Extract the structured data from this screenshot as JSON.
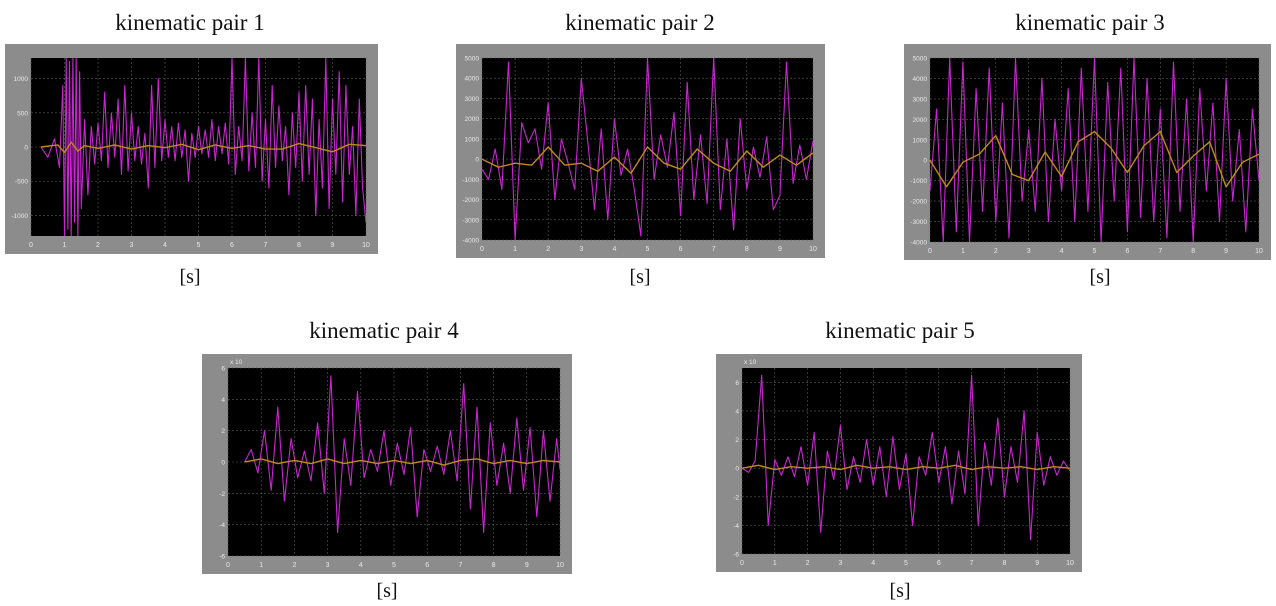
{
  "colors": {
    "frame": "#8c8c8c",
    "plot_bg": "#000000",
    "grid": "#5a5a5a",
    "tick_text": "#e8e8e8",
    "series_magenta": "#c826d0",
    "series_orange": "#c08a18"
  },
  "chart_data": [
    {
      "type": "line",
      "title": "kinematic pair 1",
      "xlabel": "[s]",
      "x_ticks": [
        "0",
        "1",
        "2",
        "3",
        "4",
        "5",
        "6",
        "7",
        "8",
        "9",
        "10"
      ],
      "y_ticks": [
        "-1000",
        "-500",
        "0",
        "500",
        "1000"
      ],
      "y_exponent": "",
      "xlim": [
        0,
        10
      ],
      "ylim": [
        -1300,
        1300
      ],
      "grid": true,
      "series": [
        {
          "color": "#c826d0",
          "x": [
            0.3,
            0.5,
            0.7,
            0.85,
            0.95,
            1.0,
            1.05,
            1.1,
            1.15,
            1.2,
            1.25,
            1.3,
            1.35,
            1.4,
            1.45,
            1.5,
            1.6,
            1.7,
            1.8,
            1.9,
            2.0,
            2.1,
            2.2,
            2.3,
            2.4,
            2.5,
            2.6,
            2.7,
            2.8,
            2.9,
            3.0,
            3.1,
            3.2,
            3.3,
            3.4,
            3.5,
            3.6,
            3.7,
            3.8,
            3.9,
            4.0,
            4.1,
            4.2,
            4.3,
            4.4,
            4.5,
            4.6,
            4.7,
            4.8,
            4.9,
            5.0,
            5.1,
            5.2,
            5.3,
            5.4,
            5.5,
            5.6,
            5.7,
            5.8,
            5.9,
            6.0,
            6.1,
            6.2,
            6.3,
            6.4,
            6.5,
            6.6,
            6.7,
            6.8,
            6.9,
            7.0,
            7.1,
            7.2,
            7.3,
            7.4,
            7.5,
            7.6,
            7.7,
            7.8,
            7.9,
            8.0,
            8.1,
            8.2,
            8.3,
            8.4,
            8.5,
            8.6,
            8.7,
            8.8,
            8.9,
            9.0,
            9.1,
            9.2,
            9.3,
            9.4,
            9.5,
            9.6,
            9.7,
            9.8,
            9.9,
            10.0
          ],
          "y": [
            0,
            -150,
            120,
            -300,
            900,
            -1300,
            1300,
            -1200,
            1250,
            -1300,
            1300,
            -1100,
            1300,
            -1300,
            1100,
            -900,
            400,
            -700,
            300,
            -250,
            350,
            -200,
            800,
            -300,
            500,
            -150,
            700,
            -400,
            900,
            -350,
            500,
            -200,
            300,
            -250,
            200,
            -600,
            900,
            -300,
            1000,
            -200,
            400,
            -150,
            300,
            -200,
            350,
            -150,
            250,
            -500,
            200,
            -150,
            300,
            -100,
            250,
            -150,
            400,
            -200,
            300,
            -100,
            350,
            -250,
            1300,
            -400,
            300,
            -200,
            1300,
            -350,
            500,
            -300,
            1300,
            -500,
            400,
            -600,
            900,
            -300,
            600,
            -200,
            300,
            -700,
            500,
            -300,
            800,
            -500,
            900,
            -400,
            700,
            -1000,
            400,
            -600,
            1300,
            -900,
            700,
            -400,
            1100,
            -800,
            900,
            -400,
            300,
            -1000,
            700,
            -600,
            -1100
          ]
        },
        {
          "color": "#c08a18",
          "x": [
            0.3,
            0.8,
            1.0,
            1.2,
            1.4,
            1.6,
            2.0,
            2.5,
            3.0,
            3.5,
            4.0,
            4.5,
            5.0,
            5.5,
            6.0,
            6.5,
            7.0,
            7.5,
            8.0,
            8.5,
            9.0,
            9.5,
            10.0
          ],
          "y": [
            0,
            30,
            -80,
            70,
            -60,
            20,
            -20,
            30,
            -30,
            20,
            -10,
            40,
            -40,
            30,
            -20,
            20,
            -30,
            -30,
            50,
            -10,
            -70,
            40,
            20
          ]
        }
      ]
    },
    {
      "type": "line",
      "title": "kinematic pair 2",
      "xlabel": "[s]",
      "x_ticks": [
        "0",
        "1",
        "2",
        "3",
        "4",
        "5",
        "6",
        "7",
        "8",
        "9",
        "10"
      ],
      "y_ticks": [
        "-4000",
        "-3000",
        "-2000",
        "-1000",
        "0",
        "1000",
        "2000",
        "3000",
        "4000",
        "5000"
      ],
      "y_exponent": "",
      "xlim": [
        0,
        10
      ],
      "ylim": [
        -4000,
        5000
      ],
      "grid": true,
      "series": [
        {
          "color": "#c826d0",
          "x": [
            0.0,
            0.2,
            0.4,
            0.6,
            0.8,
            1.0,
            1.2,
            1.4,
            1.6,
            1.8,
            2.0,
            2.2,
            2.4,
            2.6,
            2.8,
            3.0,
            3.2,
            3.4,
            3.6,
            3.8,
            4.0,
            4.2,
            4.4,
            4.6,
            4.8,
            5.0,
            5.2,
            5.4,
            5.6,
            5.8,
            6.0,
            6.2,
            6.4,
            6.6,
            6.8,
            7.0,
            7.2,
            7.4,
            7.6,
            7.8,
            8.0,
            8.2,
            8.4,
            8.6,
            8.8,
            9.0,
            9.2,
            9.4,
            9.6,
            9.8,
            10.0
          ],
          "y": [
            -500,
            -1000,
            500,
            -1500,
            4800,
            -4000,
            1800,
            800,
            1500,
            -500,
            2800,
            -2000,
            1000,
            -200,
            -1500,
            4000,
            800,
            -2500,
            1500,
            -3000,
            2000,
            -800,
            500,
            -1500,
            -3800,
            5000,
            -1000,
            1200,
            -400,
            2300,
            -2800,
            3800,
            -2000,
            1200,
            -2200,
            5000,
            -2500,
            1000,
            -3500,
            2000,
            -1500,
            600,
            -900,
            1100,
            -2500,
            -1800,
            4800,
            -1200,
            700,
            -1000,
            900
          ]
        },
        {
          "color": "#c08a18",
          "x": [
            0.0,
            0.5,
            1.0,
            1.5,
            2.0,
            2.5,
            3.0,
            3.5,
            4.0,
            4.5,
            5.0,
            5.5,
            6.0,
            6.5,
            7.0,
            7.5,
            8.0,
            8.5,
            9.0,
            9.5,
            10.0
          ],
          "y": [
            0,
            -400,
            -200,
            -300,
            600,
            -300,
            -200,
            -600,
            100,
            -700,
            600,
            -200,
            -500,
            500,
            -200,
            -600,
            400,
            -400,
            200,
            -300,
            300
          ]
        }
      ]
    },
    {
      "type": "line",
      "title": "kinematic pair 3",
      "xlabel": "[s]",
      "x_ticks": [
        "0",
        "1",
        "2",
        "3",
        "4",
        "5",
        "6",
        "7",
        "8",
        "9",
        "10"
      ],
      "y_ticks": [
        "-4000",
        "-3000",
        "-2000",
        "-1000",
        "0",
        "1000",
        "2000",
        "3000",
        "4000",
        "5000"
      ],
      "y_exponent": "",
      "xlim": [
        0,
        10
      ],
      "ylim": [
        -4000,
        5000
      ],
      "grid": true,
      "series": [
        {
          "color": "#c826d0",
          "x": [
            0.0,
            0.2,
            0.4,
            0.6,
            0.8,
            1.0,
            1.2,
            1.4,
            1.6,
            1.8,
            2.0,
            2.2,
            2.4,
            2.6,
            2.8,
            3.0,
            3.2,
            3.4,
            3.6,
            3.8,
            4.0,
            4.2,
            4.4,
            4.6,
            4.8,
            5.0,
            5.2,
            5.4,
            5.6,
            5.8,
            6.0,
            6.2,
            6.4,
            6.6,
            6.8,
            7.0,
            7.2,
            7.4,
            7.6,
            7.8,
            8.0,
            8.2,
            8.4,
            8.6,
            8.8,
            9.0,
            9.2,
            9.4,
            9.6,
            9.8,
            10.0
          ],
          "y": [
            -1500,
            2500,
            -4000,
            5000,
            -3500,
            4800,
            -4000,
            3500,
            -2500,
            4500,
            -3000,
            2800,
            -3800,
            5000,
            -2000,
            1500,
            -2500,
            4000,
            -3000,
            2000,
            -1500,
            3500,
            -3000,
            4500,
            -2500,
            5000,
            -4000,
            3800,
            -2000,
            4500,
            -3500,
            5000,
            -2800,
            4000,
            -3000,
            2500,
            -3800,
            4800,
            -2500,
            3000,
            -4000,
            3500,
            -1500,
            2800,
            -3000,
            4000,
            -2000,
            1500,
            -3500,
            2500,
            -1000
          ]
        },
        {
          "color": "#c08a18",
          "x": [
            0.0,
            0.5,
            1.0,
            1.5,
            2.0,
            2.5,
            3.0,
            3.5,
            4.0,
            4.5,
            5.0,
            5.5,
            6.0,
            6.5,
            7.0,
            7.5,
            8.0,
            8.5,
            9.0,
            9.5,
            10.0
          ],
          "y": [
            0,
            -1300,
            -100,
            300,
            1200,
            -700,
            -1000,
            400,
            -800,
            900,
            1400,
            600,
            -600,
            700,
            1400,
            -600,
            200,
            900,
            -1300,
            -100,
            300
          ]
        }
      ]
    },
    {
      "type": "line",
      "title": "kinematic pair 4",
      "xlabel": "[s]",
      "x_ticks": [
        "0",
        "1",
        "2",
        "3",
        "4",
        "5",
        "6",
        "7",
        "8",
        "9",
        "10"
      ],
      "y_ticks": [
        "-6",
        "-4",
        "-2",
        "0",
        "2",
        "4",
        "6"
      ],
      "y_exponent": "x 10",
      "xlim": [
        0,
        10
      ],
      "ylim": [
        -6,
        6
      ],
      "grid": true,
      "series": [
        {
          "color": "#c826d0",
          "x": [
            0.5,
            0.7,
            0.9,
            1.1,
            1.3,
            1.5,
            1.7,
            1.9,
            2.1,
            2.3,
            2.5,
            2.7,
            2.9,
            3.1,
            3.3,
            3.5,
            3.7,
            3.9,
            4.1,
            4.3,
            4.5,
            4.7,
            4.9,
            5.1,
            5.3,
            5.5,
            5.7,
            5.9,
            6.1,
            6.3,
            6.5,
            6.7,
            6.9,
            7.1,
            7.3,
            7.5,
            7.7,
            7.9,
            8.1,
            8.3,
            8.5,
            8.7,
            8.9,
            9.1,
            9.3,
            9.5,
            9.7,
            9.9,
            10.0
          ],
          "y": [
            0,
            0.8,
            -0.7,
            2.0,
            -1.8,
            3.5,
            -2.5,
            1.5,
            -1.0,
            0.7,
            -1.2,
            2.5,
            -2.0,
            5.5,
            -4.5,
            1.5,
            -1.5,
            4.5,
            -1.0,
            0.8,
            -0.6,
            2.0,
            -1.5,
            1.2,
            -0.8,
            2.2,
            -3.5,
            0.8,
            -0.6,
            1.0,
            -0.8,
            2.0,
            -1.2,
            5.0,
            -3.0,
            3.5,
            -4.5,
            2.5,
            -1.5,
            1.2,
            -2.0,
            2.8,
            -1.8,
            2.2,
            -3.5,
            2.0,
            -2.5,
            1.5,
            -0.5
          ]
        },
        {
          "color": "#c08a18",
          "x": [
            0.5,
            1.0,
            1.5,
            2.0,
            2.5,
            3.0,
            3.5,
            4.0,
            4.5,
            5.0,
            5.5,
            6.0,
            6.5,
            7.0,
            7.5,
            8.0,
            8.5,
            9.0,
            9.5,
            10.0
          ],
          "y": [
            0,
            0.2,
            -0.1,
            0.1,
            -0.1,
            0.2,
            -0.1,
            0.1,
            -0.1,
            0.1,
            -0.1,
            0.1,
            -0.2,
            0.1,
            0.2,
            -0.1,
            0.1,
            -0.1,
            0.1,
            0.0
          ]
        }
      ]
    },
    {
      "type": "line",
      "title": "kinematic pair 5",
      "xlabel": "[s]",
      "x_ticks": [
        "0",
        "1",
        "2",
        "3",
        "4",
        "5",
        "6",
        "7",
        "8",
        "9",
        "10"
      ],
      "y_ticks": [
        "-6",
        "-4",
        "-2",
        "0",
        "2",
        "4",
        "6"
      ],
      "y_exponent": "x 10",
      "xlim": [
        0,
        10
      ],
      "ylim": [
        -6,
        7
      ],
      "grid": true,
      "series": [
        {
          "color": "#c826d0",
          "x": [
            0.0,
            0.2,
            0.4,
            0.6,
            0.8,
            1.0,
            1.2,
            1.4,
            1.6,
            1.8,
            2.0,
            2.2,
            2.4,
            2.6,
            2.8,
            3.0,
            3.2,
            3.4,
            3.6,
            3.8,
            4.0,
            4.2,
            4.4,
            4.6,
            4.8,
            5.0,
            5.2,
            5.4,
            5.6,
            5.8,
            6.0,
            6.2,
            6.4,
            6.6,
            6.8,
            7.0,
            7.2,
            7.4,
            7.6,
            7.8,
            8.0,
            8.2,
            8.4,
            8.6,
            8.8,
            9.0,
            9.2,
            9.4,
            9.6,
            9.8,
            10.0
          ],
          "y": [
            0,
            -0.3,
            0.5,
            6.5,
            -4.0,
            0.6,
            -0.5,
            0.8,
            -0.6,
            1.5,
            -1.2,
            2.5,
            -4.5,
            1.2,
            -0.8,
            3.0,
            -1.5,
            0.8,
            -1.0,
            2.0,
            -1.2,
            1.5,
            -2.0,
            2.2,
            -1.5,
            1.0,
            -4.0,
            0.8,
            -0.5,
            2.5,
            -1.0,
            1.5,
            -2.5,
            1.2,
            -1.8,
            6.5,
            -4.0,
            1.8,
            -1.2,
            3.5,
            -2.0,
            1.5,
            -1.0,
            4.0,
            -5.0,
            2.5,
            -1.2,
            0.8,
            -0.5,
            0.5,
            -0.2
          ]
        },
        {
          "color": "#c08a18",
          "x": [
            0.0,
            0.5,
            1.0,
            1.5,
            2.0,
            2.5,
            3.0,
            3.5,
            4.0,
            4.5,
            5.0,
            5.5,
            6.0,
            6.5,
            7.0,
            7.5,
            8.0,
            8.5,
            9.0,
            9.5,
            10.0
          ],
          "y": [
            0,
            0.2,
            -0.1,
            0.1,
            0.0,
            0.1,
            -0.1,
            0.2,
            0.0,
            0.1,
            -0.1,
            0.1,
            0.0,
            0.2,
            -0.1,
            0.1,
            0.0,
            0.1,
            -0.1,
            0.1,
            0.0
          ]
        }
      ]
    }
  ]
}
